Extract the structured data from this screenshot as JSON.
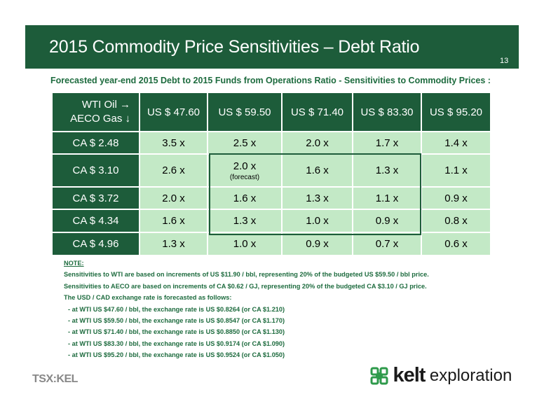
{
  "header": {
    "title": "2015 Commodity Price Sensitivities – Debt Ratio",
    "slide_number": "13"
  },
  "subtitle": "Forecasted year-end 2015 Debt to 2015 Funds from Operations Ratio - Sensitivities to Commodity Prices :",
  "table": {
    "corner_line1": "WTI Oil →",
    "corner_line2": "AECO Gas ↓",
    "columns": [
      "US $ 47.60",
      "US $ 59.50",
      "US $ 71.40",
      "US $ 83.30",
      "US $ 95.20"
    ],
    "rows": [
      {
        "label": "CA $ 2.48",
        "values": [
          "3.5 x",
          "2.5 x",
          "2.0 x",
          "1.7 x",
          "1.4 x"
        ]
      },
      {
        "label": "CA $ 3.10",
        "values": [
          "2.6 x",
          "2.0 x",
          "1.6 x",
          "1.3 x",
          "1.1 x"
        ],
        "forecast_note": "(forecast)"
      },
      {
        "label": "CA $ 3.72",
        "values": [
          "2.0 x",
          "1.6 x",
          "1.3 x",
          "1.1 x",
          "0.9 x"
        ]
      },
      {
        "label": "CA $ 4.34",
        "values": [
          "1.6 x",
          "1.3 x",
          "1.0 x",
          "0.9 x",
          "0.8 x"
        ]
      },
      {
        "label": "CA $ 4.96",
        "values": [
          "1.3 x",
          "1.0 x",
          "0.9 x",
          "0.7 x",
          "0.6 x"
        ]
      }
    ]
  },
  "notes": {
    "heading": "NOTE:",
    "lines": [
      "Sensitivities to WTI are based on increments of US $11.90 / bbl, representing 20% of the budgeted US $59.50 / bbl price.",
      "Sensitivities to AECO are based on increments of CA $0.62 / GJ, representing 20% of the budgeted CA $3.10 / GJ price.",
      "The USD / CAD exchange rate is forecasted as follows:"
    ],
    "fx_lines": [
      "- at WTI US $47.60 / bbl, the exchange rate is US $0.8264 (or CA $1.210)",
      "- at WTI US $59.50 / bbl, the exchange rate is US $0.8547 (or CA $1.170)",
      "- at WTI US $71.40 / bbl, the exchange rate is US $0.8850 (or CA $1.130)",
      "- at WTI US $83.30 / bbl, the exchange rate is US $0.9174 (or CA $1.090)",
      "- at WTI US $95.20 / bbl, the exchange rate is US $0.9524 (or CA $1.050)"
    ]
  },
  "footer": {
    "tsx_logo_text": "TSX:KEL",
    "kelt_word": "kelt",
    "kelt_sub": "exploration"
  },
  "colors": {
    "brand_green": "#1d5c3a",
    "cell_green": "#c3e9c6",
    "text_green": "#1d6b3e"
  }
}
